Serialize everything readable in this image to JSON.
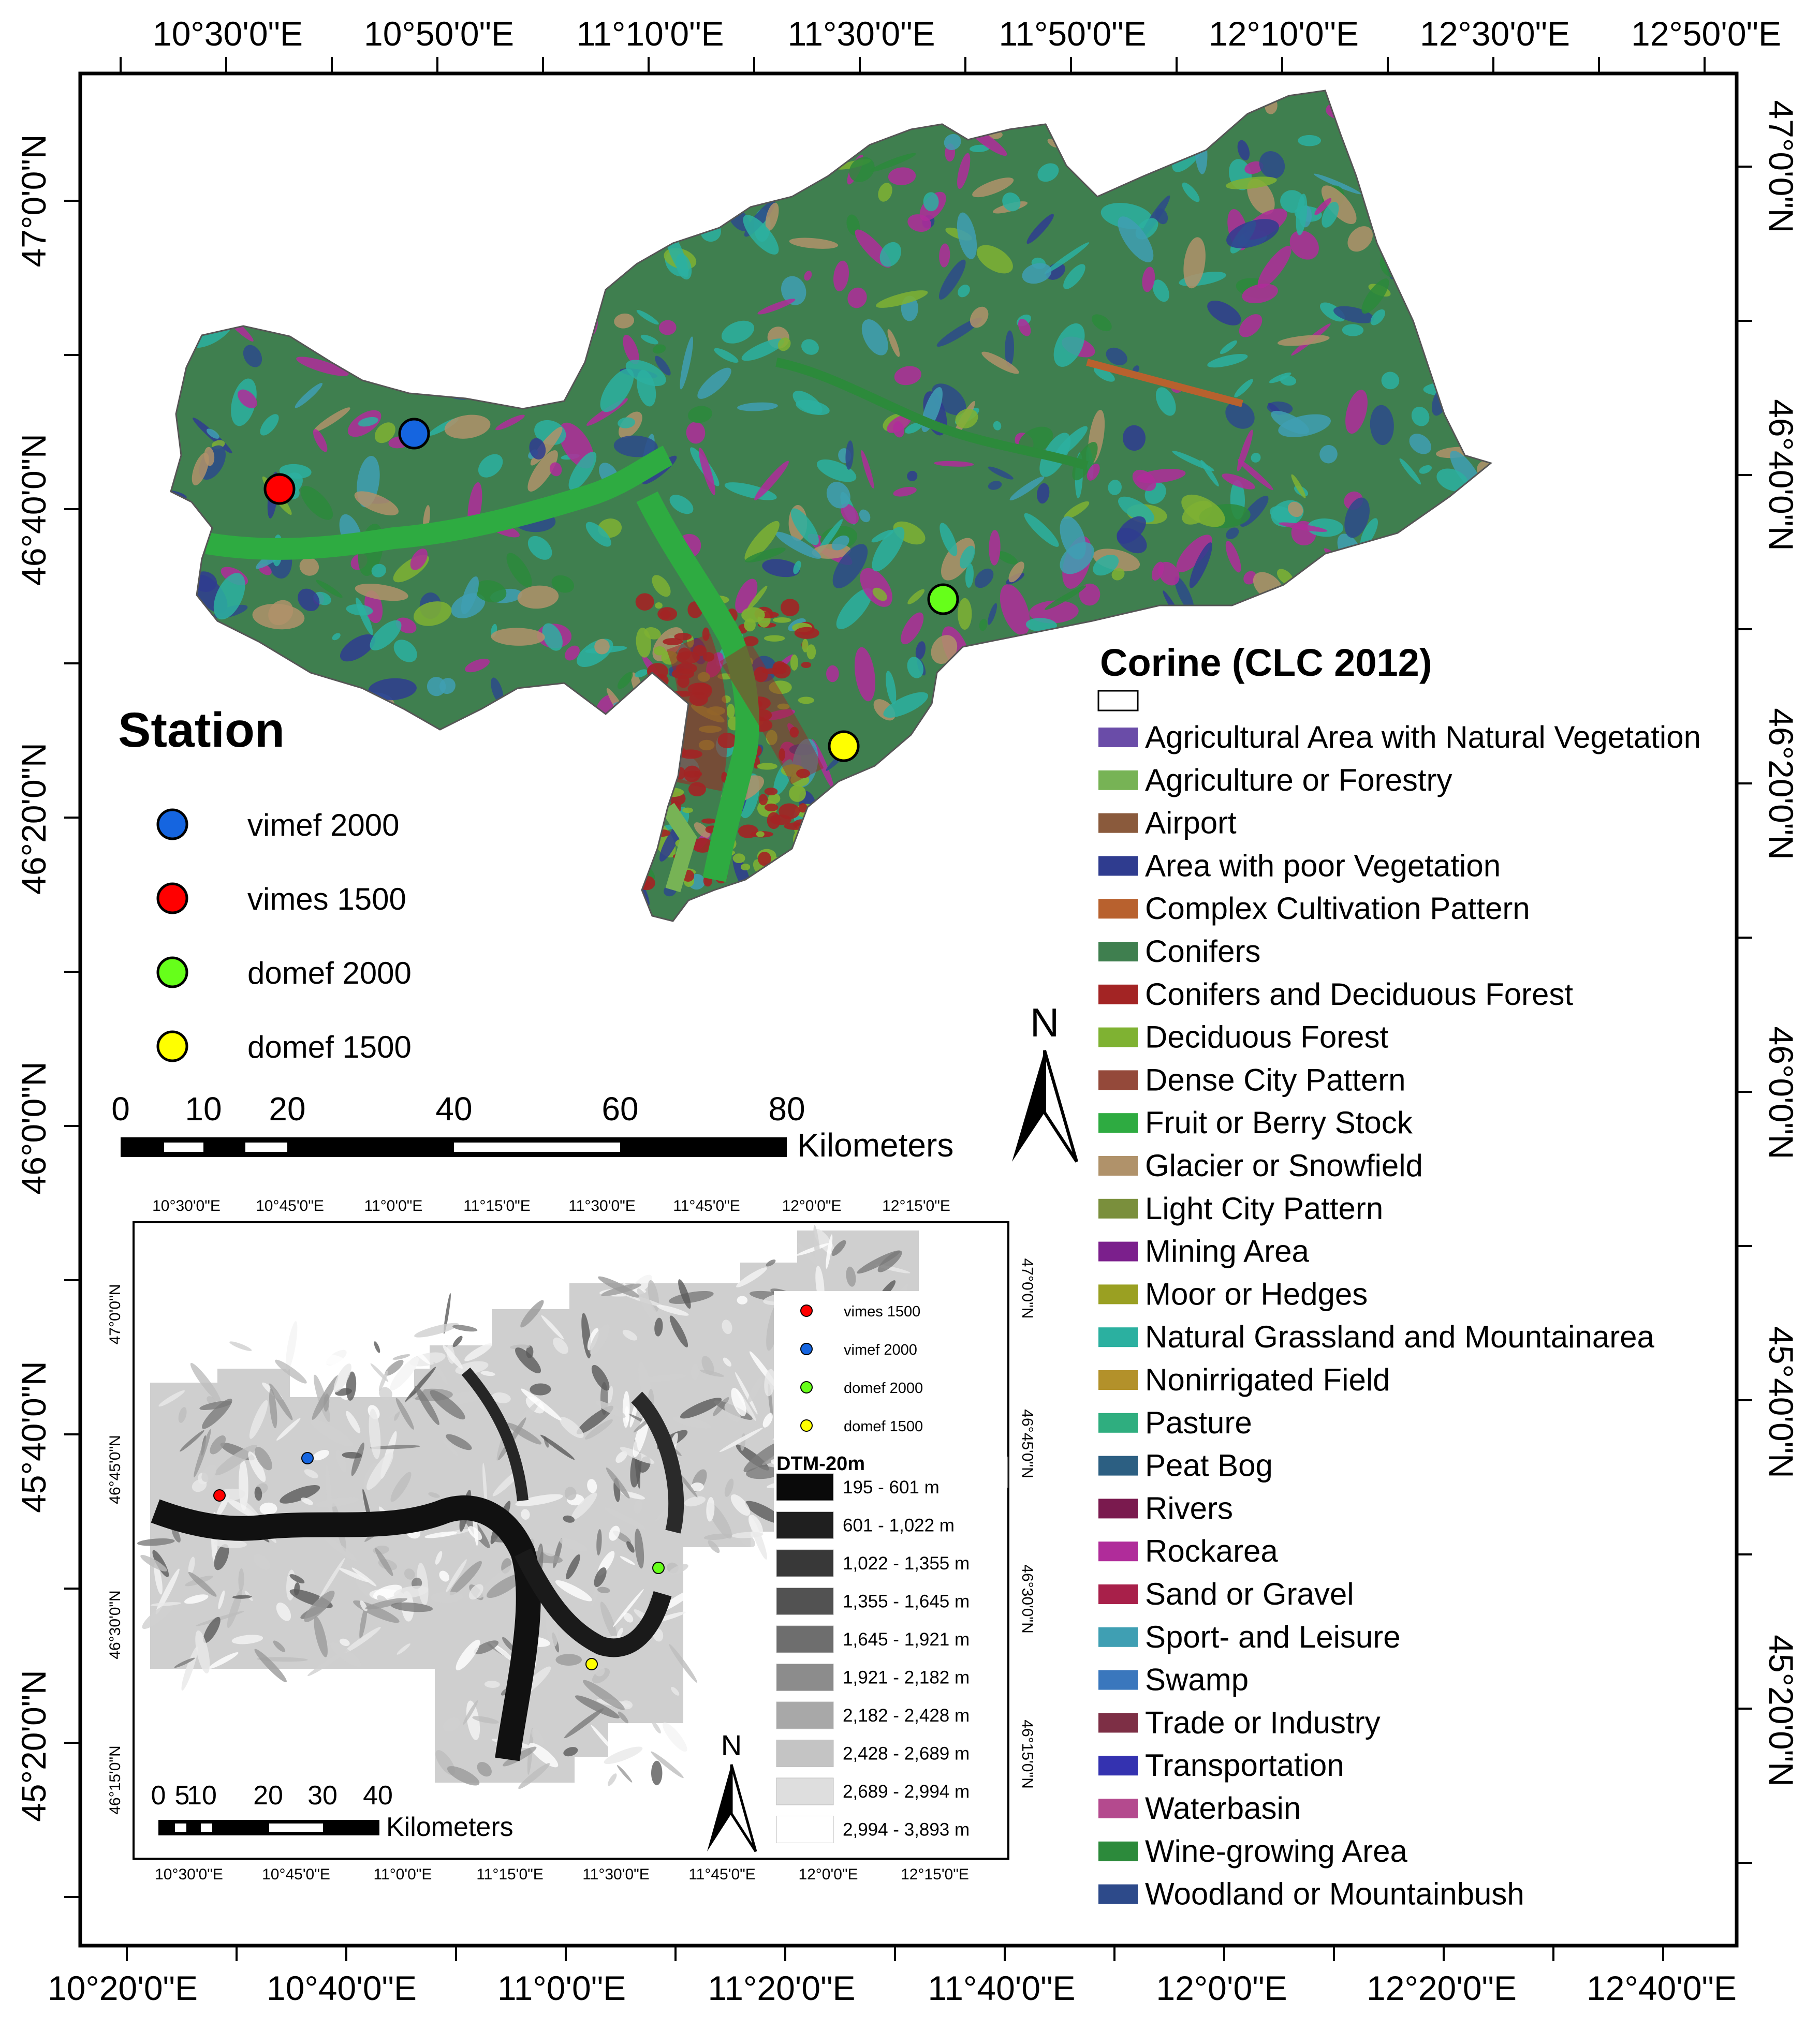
{
  "top_lon_labels": [
    "10°30'0\"E",
    "10°50'0\"E",
    "11°10'0\"E",
    "11°30'0\"E",
    "11°50'0\"E",
    "12°10'0\"E",
    "12°30'0\"E",
    "12°50'0\"E"
  ],
  "bottom_lon_labels": [
    "10°20'0\"E",
    "10°40'0\"E",
    "11°0'0\"E",
    "11°20'0\"E",
    "11°40'0\"E",
    "12°0'0\"E",
    "12°20'0\"E",
    "12°40'0\"E"
  ],
  "left_lat_labels": [
    "47°0'0\"N",
    "46°40'0\"N",
    "46°20'0\"N",
    "46°0'0\"N",
    "45°40'0\"N",
    "45°20'0\"N"
  ],
  "right_lat_labels": [
    "47°0'0\"N",
    "46°40'0\"N",
    "46°20'0\"N",
    "46°0'0\"N",
    "45°40'0\"N",
    "45°20'0\"N"
  ],
  "station_legend": {
    "title": "Station",
    "items": [
      {
        "label": "vimef 2000",
        "color": "#1565e0"
      },
      {
        "label": "vimes 1500",
        "color": "#ff0000"
      },
      {
        "label": "domef 2000",
        "color": "#66ff1a"
      },
      {
        "label": "domef 1500",
        "color": "#ffff00"
      }
    ]
  },
  "scale_bar": {
    "ticks": [
      "0",
      "10",
      "20",
      "40",
      "60",
      "80"
    ],
    "unit": "Kilometers"
  },
  "north_arrow": "N",
  "corine_legend": {
    "title": "Corine (CLC 2012)",
    "items": [
      {
        "label": "Agricultural Area with Natural Vegetation",
        "color": "#6a4ca8"
      },
      {
        "label": "Agriculture or Forestry",
        "color": "#77b355"
      },
      {
        "label": "Airport",
        "color": "#8a5a3c"
      },
      {
        "label": "Area with poor Vegetation",
        "color": "#2f3c8f"
      },
      {
        "label": "Complex Cultivation Pattern",
        "color": "#b8612e"
      },
      {
        "label": "Conifers",
        "color": "#3f7f4f"
      },
      {
        "label": "Conifers and Deciduous Forest",
        "color": "#a32424"
      },
      {
        "label": "Deciduous Forest",
        "color": "#7fb232"
      },
      {
        "label": "Dense City Pattern",
        "color": "#94493a"
      },
      {
        "label": "Fruit or Berry Stock",
        "color": "#2eab41"
      },
      {
        "label": "Glacier or Snowfield",
        "color": "#b0926a"
      },
      {
        "label": "Light City Pattern",
        "color": "#7a8f3c"
      },
      {
        "label": "Mining Area",
        "color": "#7b1f8c"
      },
      {
        "label": "Moor or Hedges",
        "color": "#9aa022"
      },
      {
        "label": "Natural Grassland and Mountainarea",
        "color": "#2bb0a0"
      },
      {
        "label": "Nonirrigated Field",
        "color": "#b3912a"
      },
      {
        "label": "Pasture",
        "color": "#2fae7f"
      },
      {
        "label": "Peat Bog",
        "color": "#2c5f82"
      },
      {
        "label": "Rivers",
        "color": "#7a1a4e"
      },
      {
        "label": "Rockarea",
        "color": "#b02c9a"
      },
      {
        "label": "Sand or Gravel",
        "color": "#a8204a"
      },
      {
        "label": "Sport- and Leisure",
        "color": "#3f9fb3"
      },
      {
        "label": "Swamp",
        "color": "#3a77bd"
      },
      {
        "label": "Trade or Industry",
        "color": "#7d2f45"
      },
      {
        "label": "Transportation",
        "color": "#3432b0"
      },
      {
        "label": "Waterbasin",
        "color": "#b44a8e"
      },
      {
        "label": "Wine-growing Area",
        "color": "#2c8a3b"
      },
      {
        "label": "Woodland or Mountainbush",
        "color": "#2d4a8a"
      }
    ]
  },
  "inset": {
    "top_lon_labels": [
      "10°30'0\"E",
      "10°45'0\"E",
      "11°0'0\"E",
      "11°15'0\"E",
      "11°30'0\"E",
      "11°45'0\"E",
      "12°0'0\"E",
      "12°15'0\"E"
    ],
    "bottom_lon_labels": [
      "10°30'0\"E",
      "10°45'0\"E",
      "11°0'0\"E",
      "11°15'0\"E",
      "11°30'0\"E",
      "11°45'0\"E",
      "12°0'0\"E",
      "12°15'0\"E"
    ],
    "left_lat_labels": [
      "47°0'0\"N",
      "46°45'0\"N",
      "46°30'0\"N",
      "46°15'0\"N"
    ],
    "right_lat_labels": [
      "47°0'0\"N",
      "46°45'0\"N",
      "46°30'0\"N",
      "46°15'0\"N"
    ],
    "station_items": [
      {
        "label": "vimes 1500",
        "color": "#ff0000"
      },
      {
        "label": "vimef 2000",
        "color": "#1565e0"
      },
      {
        "label": "domef 2000",
        "color": "#66ff1a"
      },
      {
        "label": "domef 1500",
        "color": "#ffff00"
      }
    ],
    "dtm_title": "DTM-20m",
    "dtm_classes": [
      {
        "label": "195 - 601 m",
        "color": "#0a0a0a"
      },
      {
        "label": "601 - 1,022 m",
        "color": "#1f1f1f"
      },
      {
        "label": "1,022 - 1,355 m",
        "color": "#383838"
      },
      {
        "label": "1,355 - 1,645 m",
        "color": "#525252"
      },
      {
        "label": "1,645 - 1,921 m",
        "color": "#6e6e6e"
      },
      {
        "label": "1,921 - 2,182 m",
        "color": "#8c8c8c"
      },
      {
        "label": "2,182 - 2,428 m",
        "color": "#a8a8a8"
      },
      {
        "label": "2,428 - 2,689 m",
        "color": "#c4c4c4"
      },
      {
        "label": "2,689 - 2,994 m",
        "color": "#dedede"
      },
      {
        "label": "2,994 - 3,893 m",
        "color": "#ffffff"
      }
    ],
    "scale_ticks": [
      "0",
      "5",
      "10",
      "20",
      "30",
      "40"
    ],
    "scale_unit": "Kilometers",
    "north_arrow": "N"
  }
}
